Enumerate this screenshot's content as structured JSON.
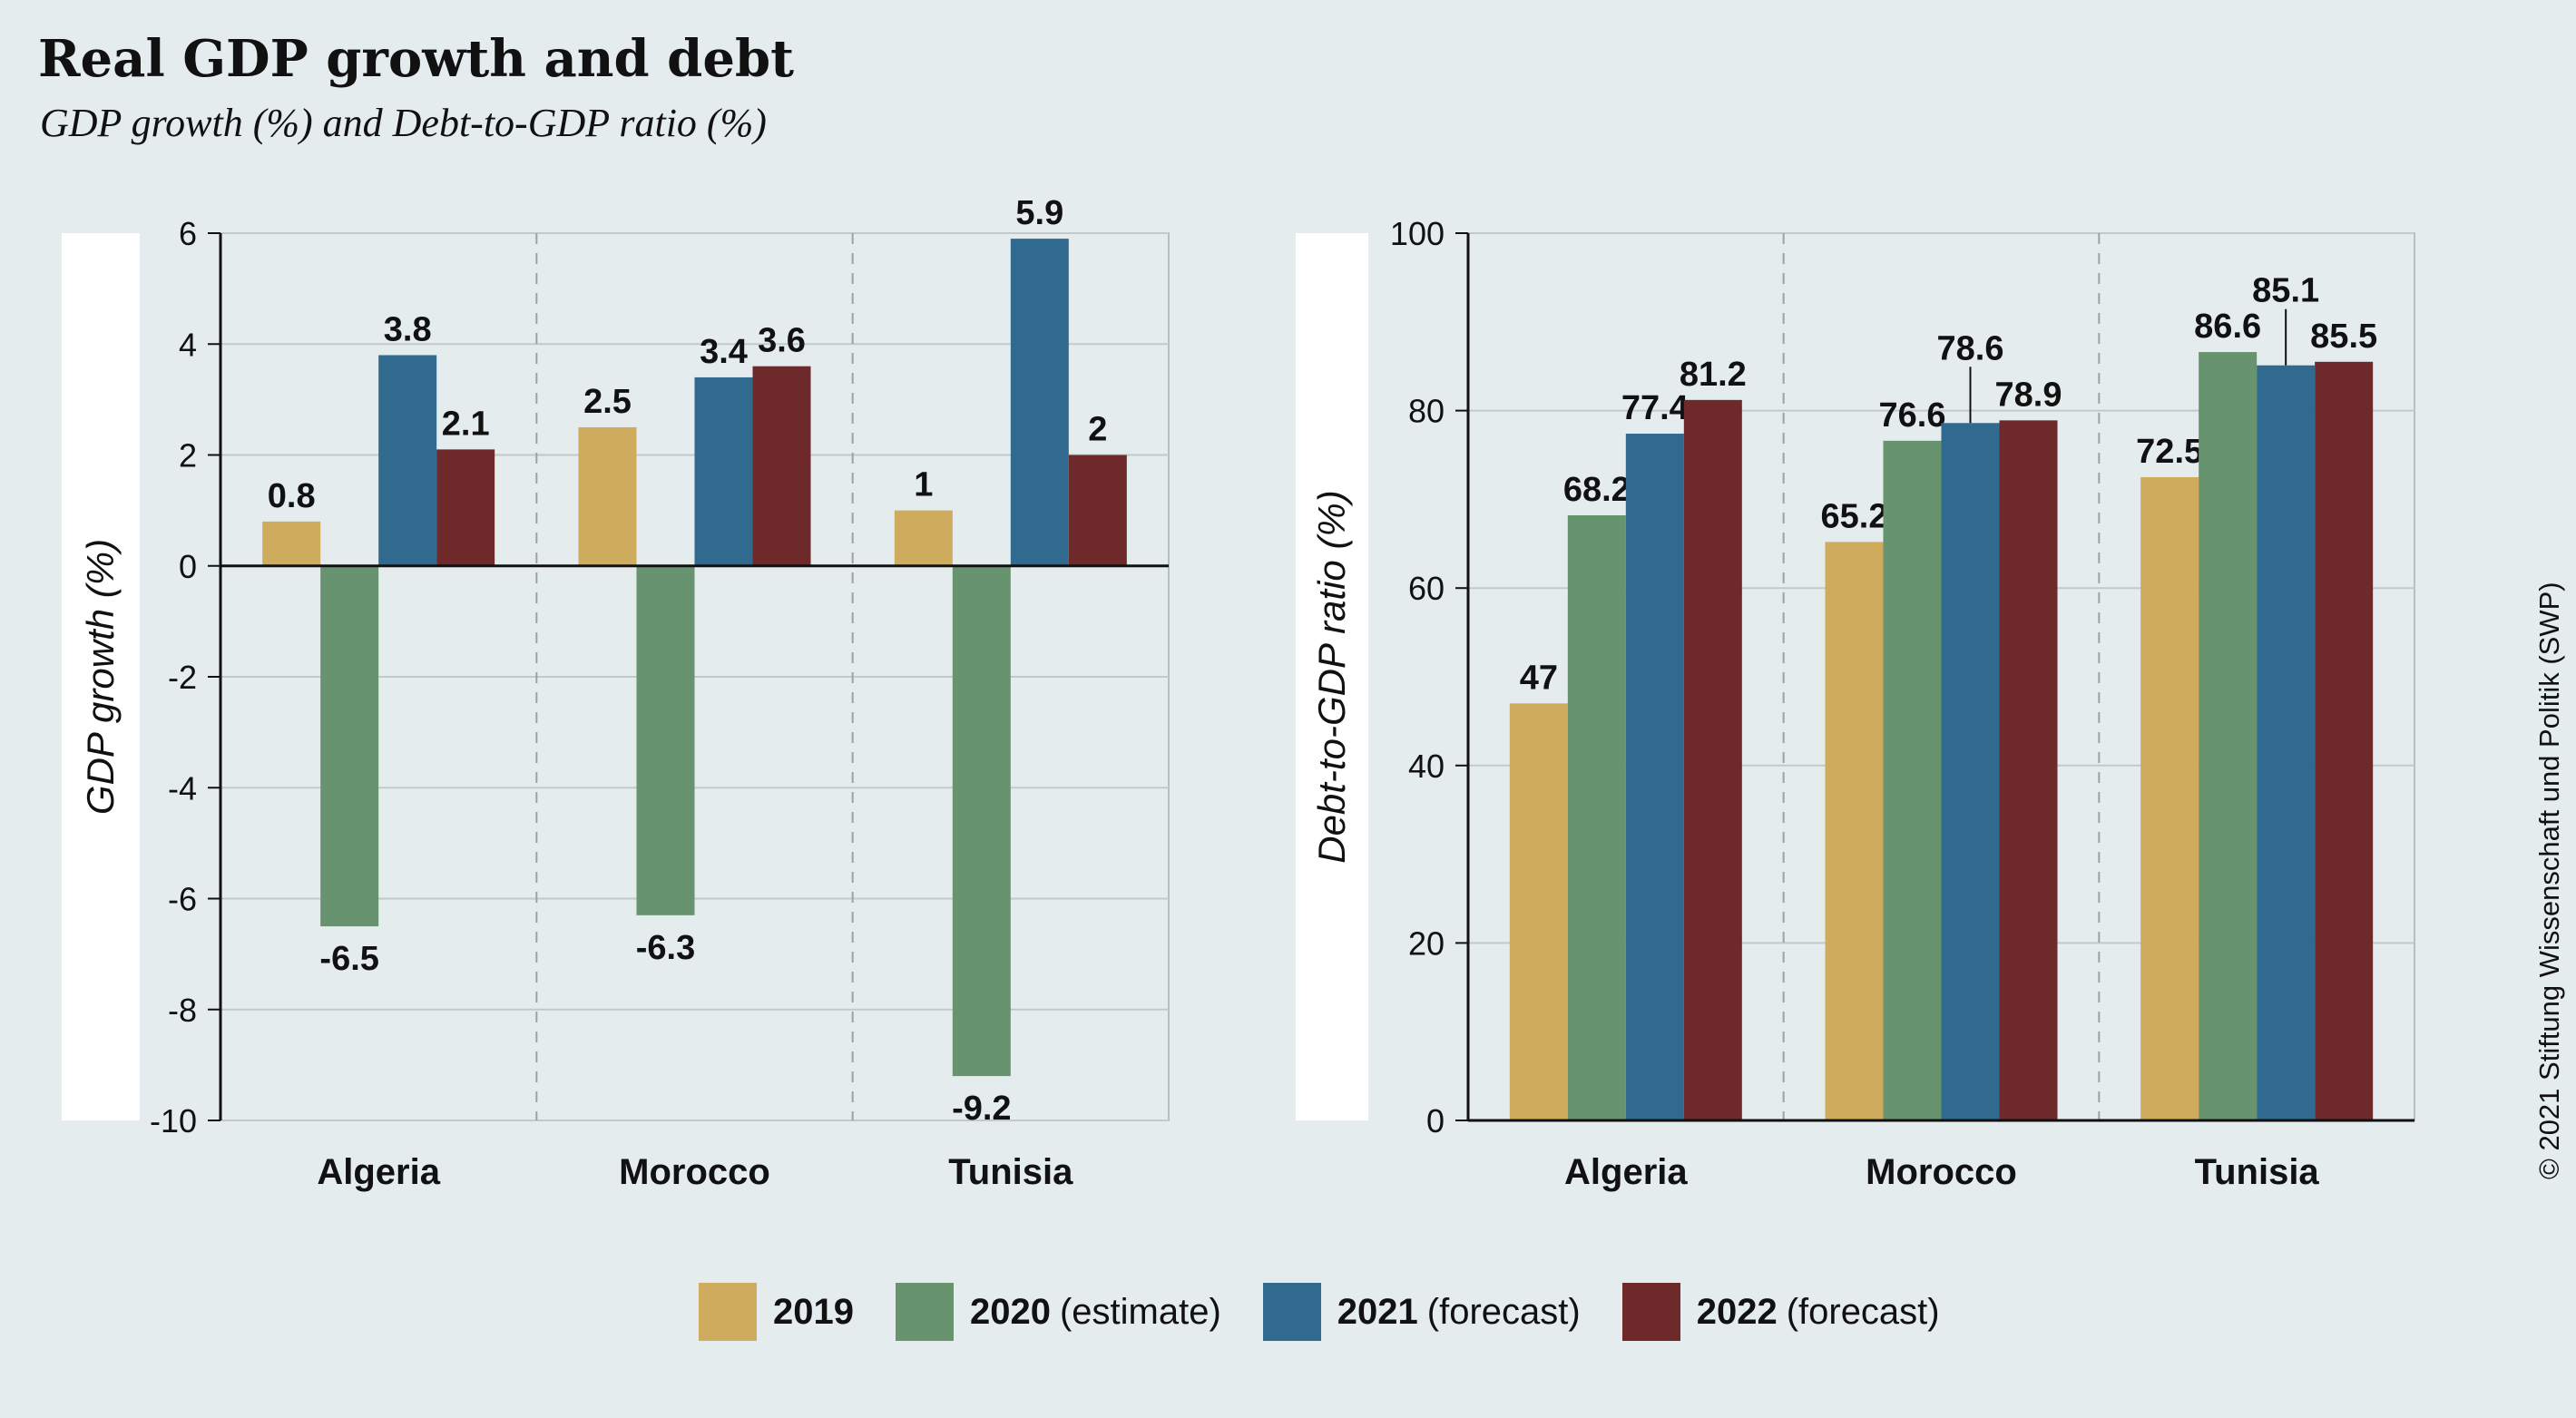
{
  "title": "Real GDP growth and debt",
  "subtitle": "GDP growth (%) and Debt-to-GDP ratio (%)",
  "copyright": "© 2021 Stiftung Wissenschaft und Politik (SWP)",
  "colors": {
    "2019": "#cfab5e",
    "2020": "#67946e",
    "2021": "#306a8f",
    "2022": "#6e292a"
  },
  "legend": [
    {
      "year": "2019",
      "note": "",
      "color": "#cfab5e"
    },
    {
      "year": "2020",
      "note": "(estimate)",
      "color": "#67946e"
    },
    {
      "year": "2021",
      "note": "(forecast)",
      "color": "#306a8f"
    },
    {
      "year": "2022",
      "note": "(forecast)",
      "color": "#6e292a"
    }
  ],
  "chart_data": [
    {
      "type": "bar",
      "title": "",
      "ylabel": "GDP growth (%)",
      "xlabel": "",
      "categories": [
        "Algeria",
        "Morocco",
        "Tunisia"
      ],
      "series": [
        {
          "name": "2019",
          "values": [
            0.8,
            2.5,
            1
          ]
        },
        {
          "name": "2020 (estimate)",
          "values": [
            -6.5,
            -6.3,
            -9.2
          ]
        },
        {
          "name": "2021 (forecast)",
          "values": [
            3.8,
            3.4,
            5.9
          ]
        },
        {
          "name": "2022 (forecast)",
          "values": [
            2.1,
            3.6,
            2
          ]
        }
      ],
      "ylim": [
        -10,
        6
      ],
      "yticks": [
        6,
        4,
        2,
        0,
        -2,
        -4,
        -6,
        -8,
        -10
      ],
      "grid": true,
      "legend": "bottom"
    },
    {
      "type": "bar",
      "title": "",
      "ylabel": "Debt-to-GDP ratio (%)",
      "xlabel": "",
      "categories": [
        "Algeria",
        "Morocco",
        "Tunisia"
      ],
      "series": [
        {
          "name": "2019",
          "values": [
            47,
            65.2,
            72.5
          ]
        },
        {
          "name": "2020 (estimate)",
          "values": [
            68.2,
            76.6,
            86.6
          ]
        },
        {
          "name": "2021 (forecast)",
          "values": [
            77.4,
            78.6,
            85.1
          ]
        },
        {
          "name": "2022 (forecast)",
          "values": [
            81.2,
            78.9,
            85.5
          ]
        }
      ],
      "ylim": [
        0,
        100
      ],
      "yticks": [
        100,
        80,
        60,
        40,
        20,
        0
      ],
      "grid": true,
      "legend": "bottom"
    }
  ]
}
